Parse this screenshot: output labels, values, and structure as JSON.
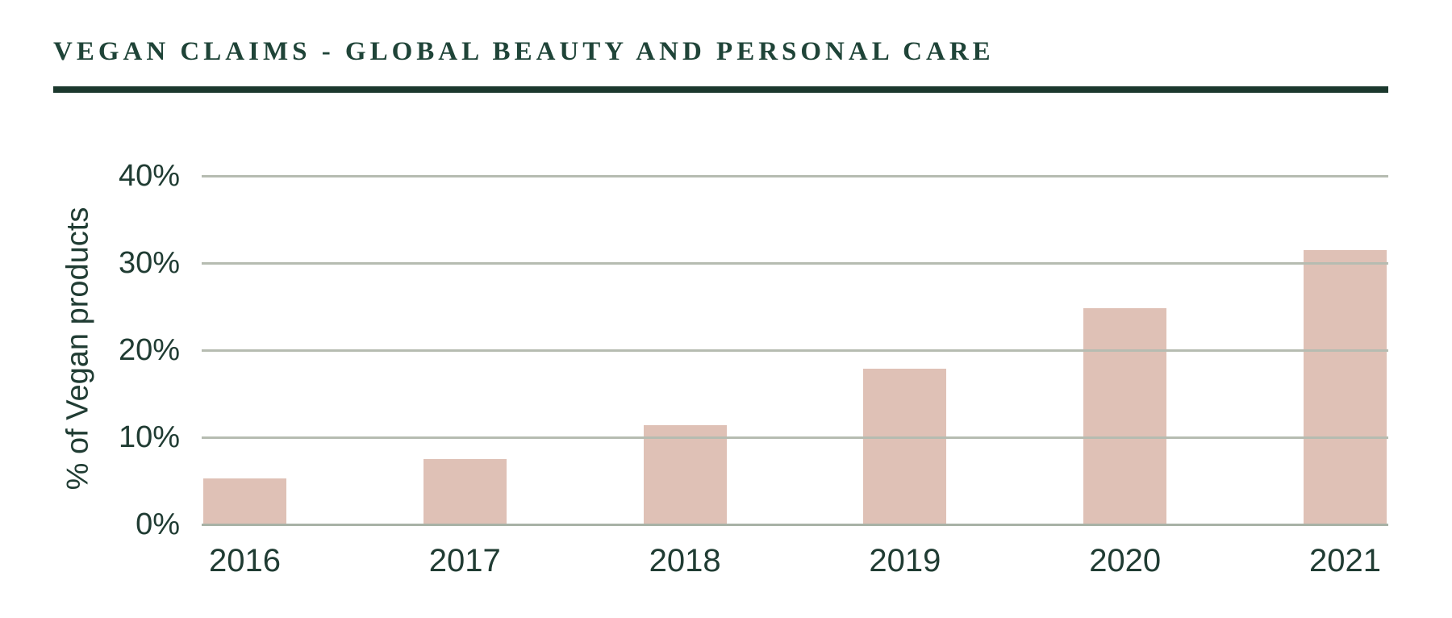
{
  "page": {
    "title": "VEGAN CLAIMS - GLOBAL BEAUTY AND PERSONAL CARE"
  },
  "colors": {
    "title_text": "#1f4438",
    "title_rule": "#1b382d",
    "axis_text": "#203c33",
    "bar_fill": "#dfc1b6",
    "gridline": "#b6bcb1",
    "baseline": "#a8b2a6",
    "background": "#ffffff"
  },
  "chart_data": {
    "type": "bar",
    "title": "VEGAN CLAIMS - GLOBAL BEAUTY AND PERSONAL CARE",
    "categories": [
      "2016",
      "2017",
      "2018",
      "2019",
      "2020",
      "2021"
    ],
    "values": [
      5.3,
      7.5,
      11.4,
      17.9,
      24.8,
      31.5
    ],
    "xlabel": "",
    "ylabel": "% of Vegan products",
    "y_ticks": [
      {
        "label": "0%",
        "value": 0
      },
      {
        "label": "10%",
        "value": 10
      },
      {
        "label": "20%",
        "value": 20
      },
      {
        "label": "30%",
        "value": 30
      },
      {
        "label": "40%",
        "value": 40
      }
    ],
    "ylim": [
      0,
      40
    ],
    "grid": true,
    "legend": false,
    "bar_color": "#dfc1b6"
  }
}
